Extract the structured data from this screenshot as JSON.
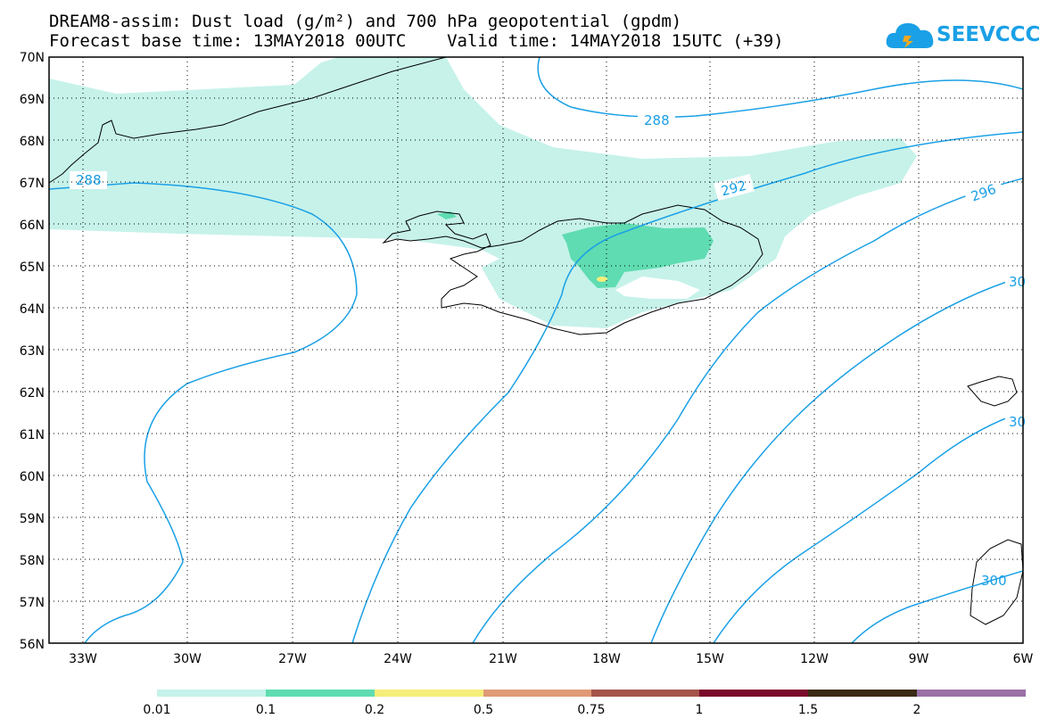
{
  "header": {
    "title_line1": "DREAM8-assim: Dust load (g/m²) and 700 hPa geopotential (gpdm)",
    "title_line2": "Forecast base time: 13MAY2018 00UTC    Valid time: 14MAY2018 15UTC (+39)"
  },
  "logo": {
    "text": "SEEVCCC",
    "color": "#1aa0e6"
  },
  "map": {
    "lat_labels": [
      "70N",
      "69N",
      "68N",
      "67N",
      "66N",
      "65N",
      "64N",
      "63N",
      "62N",
      "61N",
      "60N",
      "59N",
      "58N",
      "57N",
      "56N"
    ],
    "lon_labels": [
      "33W",
      "30W",
      "27W",
      "24W",
      "21W",
      "18W",
      "15W",
      "12W",
      "9W",
      "6W"
    ],
    "contour_labels": [
      "288",
      "288",
      "292",
      "296",
      "30",
      "30",
      "300"
    ],
    "contour_color": "#1aa0e6",
    "dust_colors": {
      "light": "#c6f2ea",
      "medium": "#5fdcb1",
      "high": "#f5ee7a"
    }
  },
  "colorbar": {
    "labels": [
      "0.01",
      "0.1",
      "0.2",
      "0.5",
      "0.75",
      "1",
      "1.5",
      "2"
    ],
    "colors": [
      "#c6f2ea",
      "#5fdcb1",
      "#f5ee7a",
      "#e09a75",
      "#a5544a",
      "#7a0a2a",
      "#3b2a14",
      "#9a70a6"
    ]
  }
}
